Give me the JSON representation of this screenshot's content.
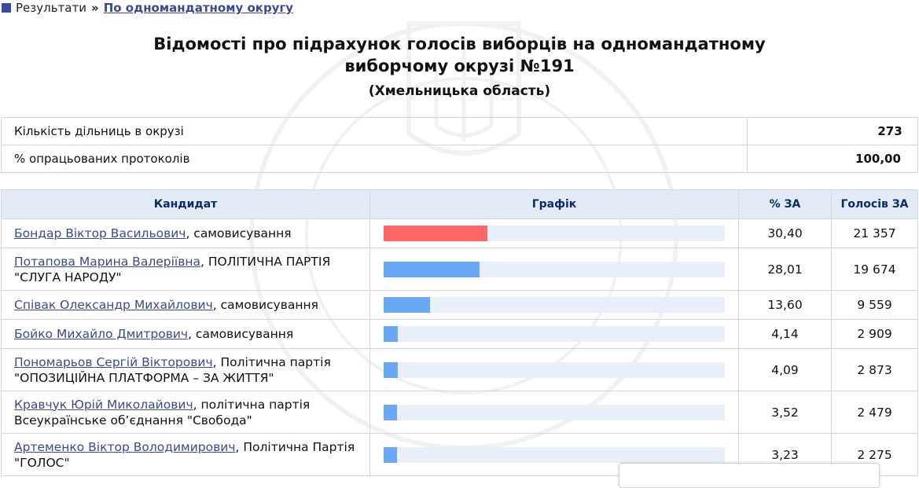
{
  "breadcrumb": {
    "results": "Результати",
    "separator": "»",
    "current": "По одномандатному округу"
  },
  "heading": {
    "title_line1": "Відомості про підрахунок голосів виборців на одномандатному",
    "title_line2": "виборчому окрузі №191",
    "region": "(Хмельницька область)"
  },
  "summary": {
    "precincts_label": "Кількість дільниць в окрузі",
    "precincts_value": "273",
    "processed_label": "% опрацьованих протоколів",
    "processed_value": "100,00"
  },
  "table": {
    "headers": {
      "candidate": "Кандидат",
      "chart": "Графік",
      "percent": "% ЗА",
      "votes": "Голосів ЗА"
    },
    "rows": [
      {
        "name": "Бондар Віктор Васильович",
        "party": ", самовисування",
        "percent": "30,40",
        "votes": "21 357",
        "share": 30.4,
        "color": "#ff6666"
      },
      {
        "name": "Потапова Марина Валеріївна",
        "party": ", ПОЛІТИЧНА ПАРТІЯ \"СЛУГА НАРОДУ\"",
        "percent": "28,01",
        "votes": "19 674",
        "share": 28.01,
        "color": "#6aa8f5"
      },
      {
        "name": "Співак Олександр Михайлович",
        "party": ", самовисування",
        "percent": "13,60",
        "votes": "9 559",
        "share": 13.6,
        "color": "#6aa8f5"
      },
      {
        "name": "Бойко Михайло Дмитрович",
        "party": ", самовисування",
        "percent": "4,14",
        "votes": "2 909",
        "share": 4.14,
        "color": "#6aa8f5"
      },
      {
        "name": "Пономарьов Сергій Вікторович",
        "party": ", Політична партія \"ОПОЗИЦІЙНА ПЛАТФОРМА – ЗА ЖИТТЯ\"",
        "percent": "4,09",
        "votes": "2 873",
        "share": 4.09,
        "color": "#6aa8f5"
      },
      {
        "name": "Кравчук Юрій Миколайович",
        "party": ", політична партія Всеукраїнське об’єднання \"Свобода\"",
        "percent": "3,52",
        "votes": "2 479",
        "share": 3.52,
        "color": "#6aa8f5"
      },
      {
        "name": "Артеменко Віктор Володимирович",
        "party": ", Політична Партія \"ГОЛОС\"",
        "percent": "3,23",
        "votes": "2 275",
        "share": 3.23,
        "color": "#6aa8f5"
      }
    ]
  }
}
